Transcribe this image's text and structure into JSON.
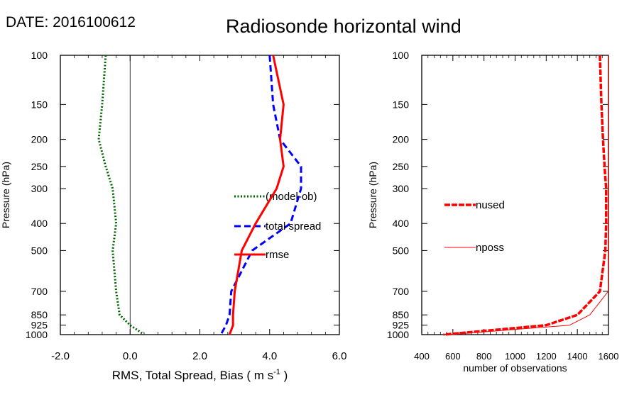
{
  "header": {
    "date_label": "DATE: 2016100612",
    "title": "Radiosonde horizontal wind"
  },
  "chart_data": [
    {
      "type": "line",
      "panel": "left",
      "xlabel": "RMS, Total Spread, Bias ( m s",
      "xlabel_sup": "-1",
      "xlabel_end": " )",
      "ylabel": "Pressure (hPa)",
      "xlim": [
        -2.0,
        6.0
      ],
      "xticks": [
        "-2.0",
        "0.0",
        "2.0",
        "4.0",
        "6.0"
      ],
      "xtick_values": [
        -2,
        0,
        2,
        4,
        6
      ],
      "ylim": [
        100,
        1000
      ],
      "yscale": "log",
      "y_reversed": true,
      "yticks": [
        100,
        150,
        200,
        250,
        300,
        400,
        500,
        700,
        850,
        925,
        1000
      ],
      "zero_line": 0,
      "legend_position": "center-right",
      "series": [
        {
          "name": "(model-ob)",
          "color": "#006400",
          "dash": "dotted",
          "points": [
            [
              -0.7,
              100
            ],
            [
              -0.8,
              150
            ],
            [
              -0.9,
              200
            ],
            [
              -0.7,
              250
            ],
            [
              -0.5,
              300
            ],
            [
              -0.4,
              400
            ],
            [
              -0.5,
              500
            ],
            [
              -0.4,
              700
            ],
            [
              -0.3,
              850
            ],
            [
              0.0,
              925
            ],
            [
              0.4,
              1000
            ]
          ]
        },
        {
          "name": "total spread",
          "color": "#0000ff",
          "dash": "dashed",
          "points": [
            [
              4.0,
              100
            ],
            [
              4.1,
              150
            ],
            [
              4.3,
              200
            ],
            [
              4.9,
              250
            ],
            [
              4.9,
              300
            ],
            [
              4.6,
              400
            ],
            [
              3.5,
              500
            ],
            [
              2.9,
              700
            ],
            [
              2.85,
              850
            ],
            [
              2.75,
              925
            ],
            [
              2.6,
              1000
            ]
          ]
        },
        {
          "name": "rmse",
          "color": "#ff0000",
          "dash": "solid",
          "points": [
            [
              4.1,
              100
            ],
            [
              4.4,
              150
            ],
            [
              4.3,
              200
            ],
            [
              4.4,
              250
            ],
            [
              4.2,
              300
            ],
            [
              3.6,
              400
            ],
            [
              3.2,
              500
            ],
            [
              3.0,
              700
            ],
            [
              2.95,
              850
            ],
            [
              2.95,
              925
            ],
            [
              2.85,
              1000
            ]
          ]
        }
      ]
    },
    {
      "type": "line",
      "panel": "right",
      "xlabel": "number of observations",
      "ylabel": "Pressure (hPa)",
      "xlim": [
        400,
        1600
      ],
      "xticks": [
        "400",
        "600",
        "800",
        "1000",
        "1200",
        "1400",
        "1600"
      ],
      "xtick_values": [
        400,
        600,
        800,
        1000,
        1200,
        1400,
        1600
      ],
      "ylim": [
        100,
        1000
      ],
      "yscale": "log",
      "y_reversed": true,
      "yticks": [
        100,
        150,
        200,
        250,
        300,
        400,
        500,
        700,
        850,
        925,
        1000
      ],
      "legend_position": "center-left",
      "series": [
        {
          "name": "nused",
          "color": "#ff0000",
          "dash": "dashed-thick",
          "points": [
            [
              1545,
              100
            ],
            [
              1555,
              150
            ],
            [
              1565,
              200
            ],
            [
              1575,
              250
            ],
            [
              1585,
              300
            ],
            [
              1585,
              400
            ],
            [
              1580,
              500
            ],
            [
              1545,
              700
            ],
            [
              1400,
              850
            ],
            [
              1200,
              925
            ],
            [
              540,
              1000
            ]
          ]
        },
        {
          "name": "nposs",
          "color": "#ff0000",
          "dash": "solid-thin",
          "points": [
            [
              1598,
              100
            ],
            [
              1598,
              150
            ],
            [
              1598,
              200
            ],
            [
              1598,
              250
            ],
            [
              1598,
              300
            ],
            [
              1598,
              400
            ],
            [
              1598,
              500
            ],
            [
              1598,
              700
            ],
            [
              1480,
              850
            ],
            [
              1350,
              925
            ],
            [
              580,
              1000
            ]
          ]
        }
      ]
    }
  ]
}
